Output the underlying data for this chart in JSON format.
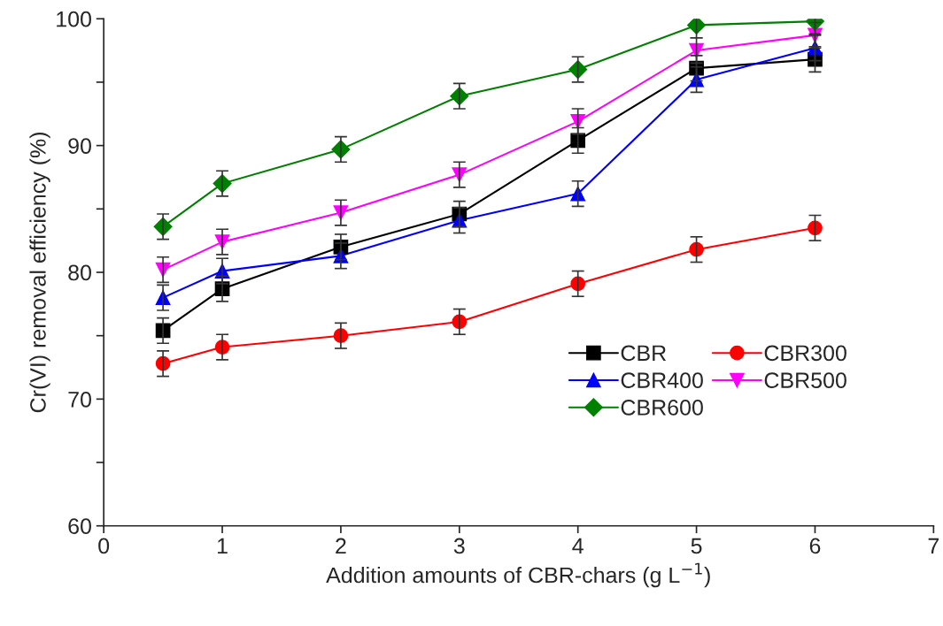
{
  "chart_data": {
    "type": "line",
    "xlabel": "Addition amounts of CBR-chars (g L$^{−1}$)",
    "ylabel": "Cr(VI) removal efficiency (%)",
    "x": [
      0.5,
      1,
      2,
      3,
      4,
      5,
      6
    ],
    "xlim": [
      0,
      7
    ],
    "xticks": [
      0,
      1,
      2,
      3,
      4,
      5,
      6,
      7
    ],
    "ylim": [
      60,
      100
    ],
    "yticks": [
      60,
      {
        "value": 65,
        "label": null
      },
      70,
      {
        "value": 75,
        "label": null
      },
      80,
      {
        "value": 85,
        "label": null
      },
      90,
      {
        "value": 95,
        "label": null
      },
      100
    ],
    "grid": false,
    "legend": "bottom right",
    "series": [
      {
        "name": "CBR",
        "color": "#000000",
        "marker": "square",
        "values": [
          75.4,
          78.7,
          82.0,
          84.6,
          90.4,
          96.1,
          96.8
        ],
        "errors": [
          1,
          1,
          1,
          1,
          1,
          1,
          1
        ]
      },
      {
        "name": "CBR300",
        "color": "#ff0000",
        "marker": "circle",
        "values": [
          72.8,
          74.1,
          75.0,
          76.1,
          79.1,
          81.8,
          83.5
        ],
        "errors": [
          1,
          1,
          1,
          1,
          1,
          1,
          1
        ]
      },
      {
        "name": "CBR400",
        "color": "#0000ff",
        "marker": "triangle",
        "values": [
          78.0,
          80.1,
          81.3,
          84.1,
          86.2,
          95.2,
          97.7
        ],
        "errors": [
          1,
          1,
          1,
          1,
          1,
          1,
          1
        ]
      },
      {
        "name": "CBR500",
        "color": "#ff00ff",
        "marker": "triangle_down",
        "values": [
          80.2,
          82.4,
          84.7,
          87.7,
          91.9,
          97.5,
          98.7
        ],
        "errors": [
          1,
          1,
          1,
          1,
          1,
          1,
          1
        ]
      },
      {
        "name": "CBR600",
        "color": "#008000",
        "marker": "diamond",
        "values": [
          83.6,
          87.0,
          89.7,
          93.9,
          96.0,
          99.5,
          99.8
        ],
        "errors": [
          1,
          1,
          1,
          1,
          1,
          1,
          1
        ]
      }
    ]
  }
}
